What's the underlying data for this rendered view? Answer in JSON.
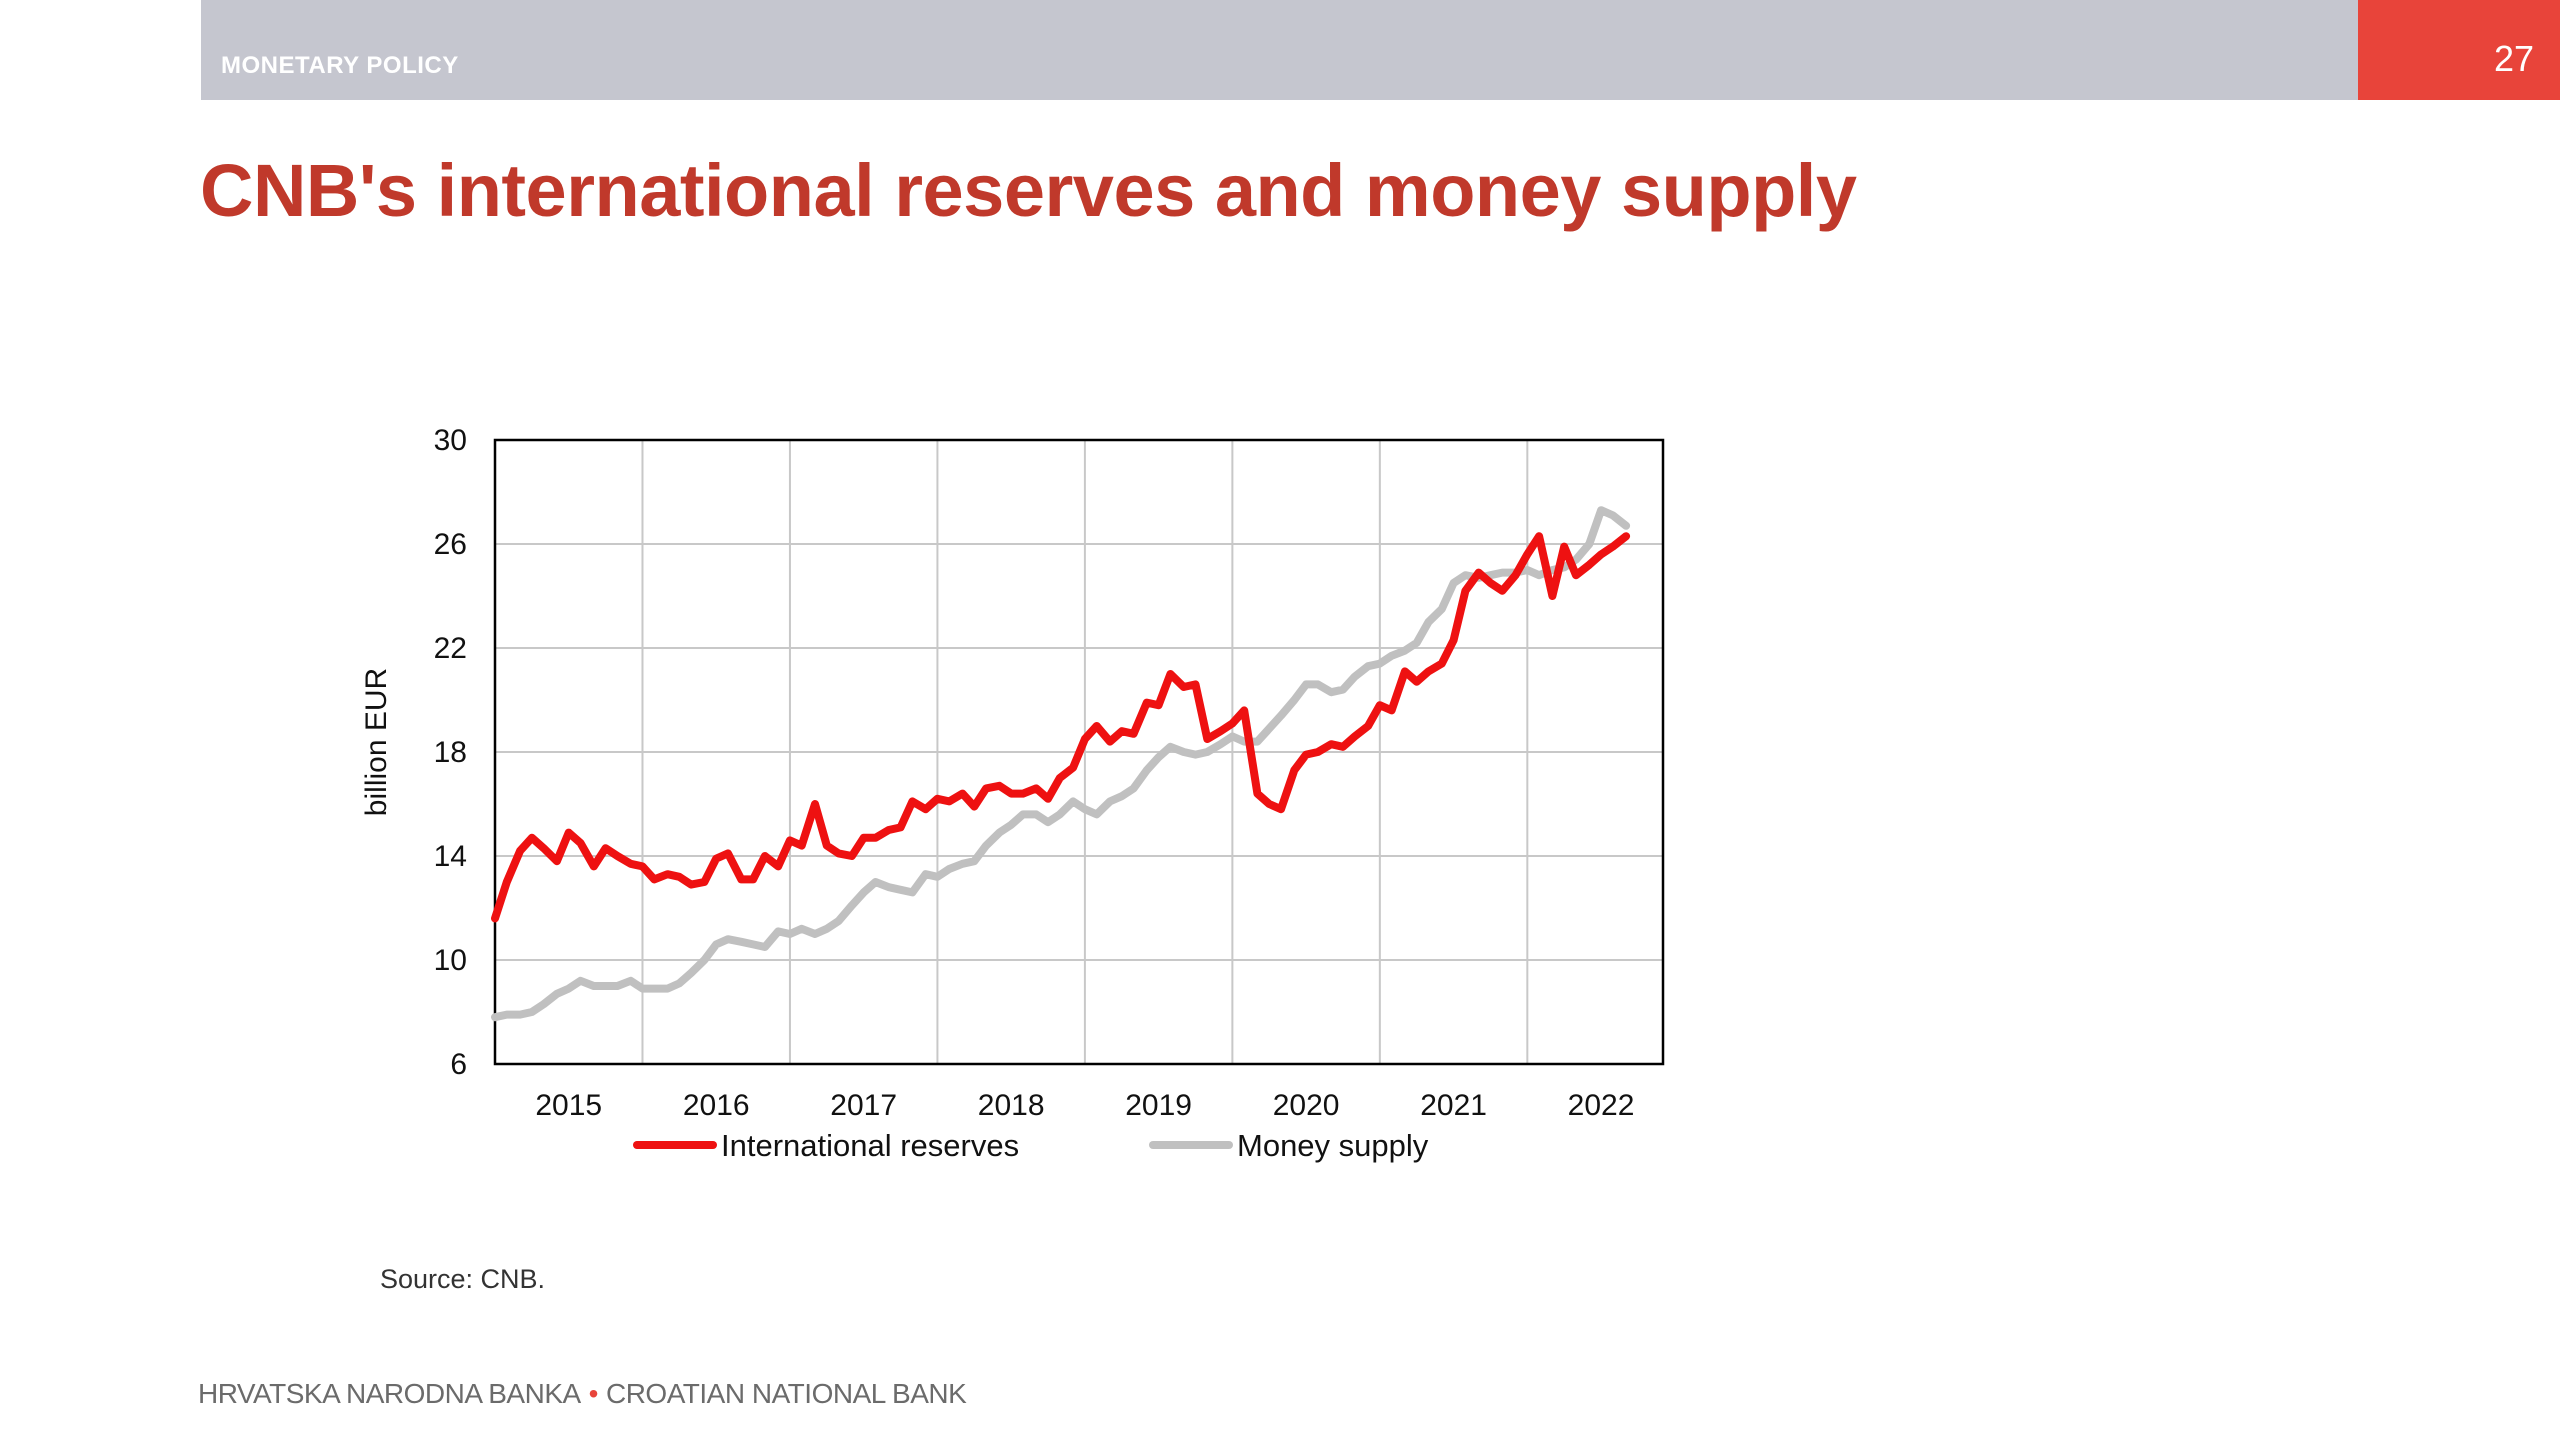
{
  "header": {
    "section": "MONETARY POLICY",
    "page_number": "27"
  },
  "title": "CNB's international reserves and money supply",
  "source": "Source: CNB.",
  "footer": {
    "left": "HRVATSKA NARODNA BANKA",
    "separator": "•",
    "right": "CROATIAN NATIONAL BANK"
  },
  "colors": {
    "header_bar": "#c5c6cf",
    "accent": "#e8443a",
    "title": "#c0392b",
    "reserves_line": "#ee1111",
    "money_supply_line": "#c0c0c0"
  },
  "chart_data": {
    "type": "line",
    "title": "",
    "xlabel": "",
    "ylabel": "billion EUR",
    "ylim": [
      6,
      30
    ],
    "yticks": [
      6,
      10,
      14,
      18,
      22,
      26,
      30
    ],
    "xlim": [
      2014.5,
      2022.42
    ],
    "xticks": [
      {
        "label": "2015",
        "x": 2015
      },
      {
        "label": "2016",
        "x": 2016
      },
      {
        "label": "2017",
        "x": 2017
      },
      {
        "label": "2018",
        "x": 2018
      },
      {
        "label": "2019",
        "x": 2019
      },
      {
        "label": "2020",
        "x": 2020
      },
      {
        "label": "2021",
        "x": 2021
      },
      {
        "label": "2022",
        "x": 2022
      }
    ],
    "grid": true,
    "legend_position": "bottom",
    "series": [
      {
        "name": "International reserves",
        "color": "#ee1111",
        "points": [
          [
            2014.5,
            11.6
          ],
          [
            2014.58,
            13.0
          ],
          [
            2014.67,
            14.2
          ],
          [
            2014.75,
            14.7
          ],
          [
            2014.83,
            14.3
          ],
          [
            2014.92,
            13.8
          ],
          [
            2015.0,
            14.9
          ],
          [
            2015.08,
            14.5
          ],
          [
            2015.17,
            13.6
          ],
          [
            2015.25,
            14.3
          ],
          [
            2015.33,
            14.0
          ],
          [
            2015.42,
            13.7
          ],
          [
            2015.5,
            13.6
          ],
          [
            2015.58,
            13.1
          ],
          [
            2015.67,
            13.3
          ],
          [
            2015.75,
            13.2
          ],
          [
            2015.83,
            12.9
          ],
          [
            2015.92,
            13.0
          ],
          [
            2016.0,
            13.9
          ],
          [
            2016.08,
            14.1
          ],
          [
            2016.17,
            13.1
          ],
          [
            2016.25,
            13.1
          ],
          [
            2016.33,
            14.0
          ],
          [
            2016.42,
            13.6
          ],
          [
            2016.5,
            14.6
          ],
          [
            2016.58,
            14.4
          ],
          [
            2016.67,
            16.0
          ],
          [
            2016.75,
            14.4
          ],
          [
            2016.83,
            14.1
          ],
          [
            2016.92,
            14.0
          ],
          [
            2017.0,
            14.7
          ],
          [
            2017.08,
            14.7
          ],
          [
            2017.17,
            15.0
          ],
          [
            2017.25,
            15.1
          ],
          [
            2017.33,
            16.1
          ],
          [
            2017.42,
            15.8
          ],
          [
            2017.5,
            16.2
          ],
          [
            2017.58,
            16.1
          ],
          [
            2017.67,
            16.4
          ],
          [
            2017.75,
            15.9
          ],
          [
            2017.83,
            16.6
          ],
          [
            2017.92,
            16.7
          ],
          [
            2018.0,
            16.4
          ],
          [
            2018.08,
            16.4
          ],
          [
            2018.17,
            16.6
          ],
          [
            2018.25,
            16.2
          ],
          [
            2018.33,
            17.0
          ],
          [
            2018.42,
            17.4
          ],
          [
            2018.5,
            18.5
          ],
          [
            2018.58,
            19.0
          ],
          [
            2018.67,
            18.4
          ],
          [
            2018.75,
            18.8
          ],
          [
            2018.83,
            18.7
          ],
          [
            2018.92,
            19.9
          ],
          [
            2019.0,
            19.8
          ],
          [
            2019.08,
            21.0
          ],
          [
            2019.17,
            20.5
          ],
          [
            2019.25,
            20.6
          ],
          [
            2019.33,
            18.5
          ],
          [
            2019.42,
            18.8
          ],
          [
            2019.5,
            19.1
          ],
          [
            2019.58,
            19.6
          ],
          [
            2019.67,
            16.4
          ],
          [
            2019.75,
            16.0
          ],
          [
            2019.83,
            15.8
          ],
          [
            2019.92,
            17.3
          ],
          [
            2020.0,
            17.9
          ],
          [
            2020.08,
            18.0
          ],
          [
            2020.17,
            18.3
          ],
          [
            2020.25,
            18.2
          ],
          [
            2020.33,
            18.6
          ],
          [
            2020.42,
            19.0
          ],
          [
            2020.5,
            19.8
          ],
          [
            2020.58,
            19.6
          ],
          [
            2020.67,
            21.1
          ],
          [
            2020.75,
            20.7
          ],
          [
            2020.83,
            21.1
          ],
          [
            2020.92,
            21.4
          ],
          [
            2021.0,
            22.3
          ],
          [
            2021.08,
            24.2
          ],
          [
            2021.17,
            24.9
          ],
          [
            2021.25,
            24.5
          ],
          [
            2021.33,
            24.2
          ],
          [
            2021.42,
            24.8
          ],
          [
            2021.5,
            25.6
          ],
          [
            2021.58,
            26.3
          ],
          [
            2021.67,
            24.0
          ],
          [
            2021.75,
            25.9
          ],
          [
            2021.83,
            24.8
          ],
          [
            2021.92,
            25.2
          ],
          [
            2022.0,
            25.6
          ],
          [
            2022.08,
            25.9
          ],
          [
            2022.17,
            26.3
          ]
        ]
      },
      {
        "name": "Money supply",
        "color": "#c0c0c0",
        "points": [
          [
            2014.5,
            7.8
          ],
          [
            2014.58,
            7.9
          ],
          [
            2014.67,
            7.9
          ],
          [
            2014.75,
            8.0
          ],
          [
            2014.83,
            8.3
          ],
          [
            2014.92,
            8.7
          ],
          [
            2015.0,
            8.9
          ],
          [
            2015.08,
            9.2
          ],
          [
            2015.17,
            9.0
          ],
          [
            2015.25,
            9.0
          ],
          [
            2015.33,
            9.0
          ],
          [
            2015.42,
            9.2
          ],
          [
            2015.5,
            8.9
          ],
          [
            2015.58,
            8.9
          ],
          [
            2015.67,
            8.9
          ],
          [
            2015.75,
            9.1
          ],
          [
            2015.83,
            9.5
          ],
          [
            2015.92,
            10.0
          ],
          [
            2016.0,
            10.6
          ],
          [
            2016.08,
            10.8
          ],
          [
            2016.17,
            10.7
          ],
          [
            2016.25,
            10.6
          ],
          [
            2016.33,
            10.5
          ],
          [
            2016.42,
            11.1
          ],
          [
            2016.5,
            11.0
          ],
          [
            2016.58,
            11.2
          ],
          [
            2016.67,
            11.0
          ],
          [
            2016.75,
            11.2
          ],
          [
            2016.83,
            11.5
          ],
          [
            2016.92,
            12.1
          ],
          [
            2017.0,
            12.6
          ],
          [
            2017.08,
            13.0
          ],
          [
            2017.17,
            12.8
          ],
          [
            2017.25,
            12.7
          ],
          [
            2017.33,
            12.6
          ],
          [
            2017.42,
            13.3
          ],
          [
            2017.5,
            13.2
          ],
          [
            2017.58,
            13.5
          ],
          [
            2017.67,
            13.7
          ],
          [
            2017.75,
            13.8
          ],
          [
            2017.83,
            14.4
          ],
          [
            2017.92,
            14.9
          ],
          [
            2018.0,
            15.2
          ],
          [
            2018.08,
            15.6
          ],
          [
            2018.17,
            15.6
          ],
          [
            2018.25,
            15.3
          ],
          [
            2018.33,
            15.6
          ],
          [
            2018.42,
            16.1
          ],
          [
            2018.5,
            15.8
          ],
          [
            2018.58,
            15.6
          ],
          [
            2018.67,
            16.1
          ],
          [
            2018.75,
            16.3
          ],
          [
            2018.83,
            16.6
          ],
          [
            2018.92,
            17.3
          ],
          [
            2019.0,
            17.8
          ],
          [
            2019.08,
            18.2
          ],
          [
            2019.17,
            18.0
          ],
          [
            2019.25,
            17.9
          ],
          [
            2019.33,
            18.0
          ],
          [
            2019.42,
            18.3
          ],
          [
            2019.5,
            18.6
          ],
          [
            2019.58,
            18.4
          ],
          [
            2019.67,
            18.4
          ],
          [
            2019.75,
            18.9
          ],
          [
            2019.83,
            19.4
          ],
          [
            2019.92,
            20.0
          ],
          [
            2020.0,
            20.6
          ],
          [
            2020.08,
            20.6
          ],
          [
            2020.17,
            20.3
          ],
          [
            2020.25,
            20.4
          ],
          [
            2020.33,
            20.9
          ],
          [
            2020.42,
            21.3
          ],
          [
            2020.5,
            21.4
          ],
          [
            2020.58,
            21.7
          ],
          [
            2020.67,
            21.9
          ],
          [
            2020.75,
            22.2
          ],
          [
            2020.83,
            23.0
          ],
          [
            2020.92,
            23.5
          ],
          [
            2021.0,
            24.5
          ],
          [
            2021.08,
            24.8
          ],
          [
            2021.17,
            24.7
          ],
          [
            2021.25,
            24.8
          ],
          [
            2021.33,
            24.9
          ],
          [
            2021.42,
            24.9
          ],
          [
            2021.5,
            25.0
          ],
          [
            2021.58,
            24.8
          ],
          [
            2021.67,
            25.0
          ],
          [
            2021.75,
            25.1
          ],
          [
            2021.83,
            25.4
          ],
          [
            2021.92,
            26.0
          ],
          [
            2022.0,
            27.3
          ],
          [
            2022.08,
            27.1
          ],
          [
            2022.17,
            26.7
          ]
        ]
      }
    ]
  }
}
